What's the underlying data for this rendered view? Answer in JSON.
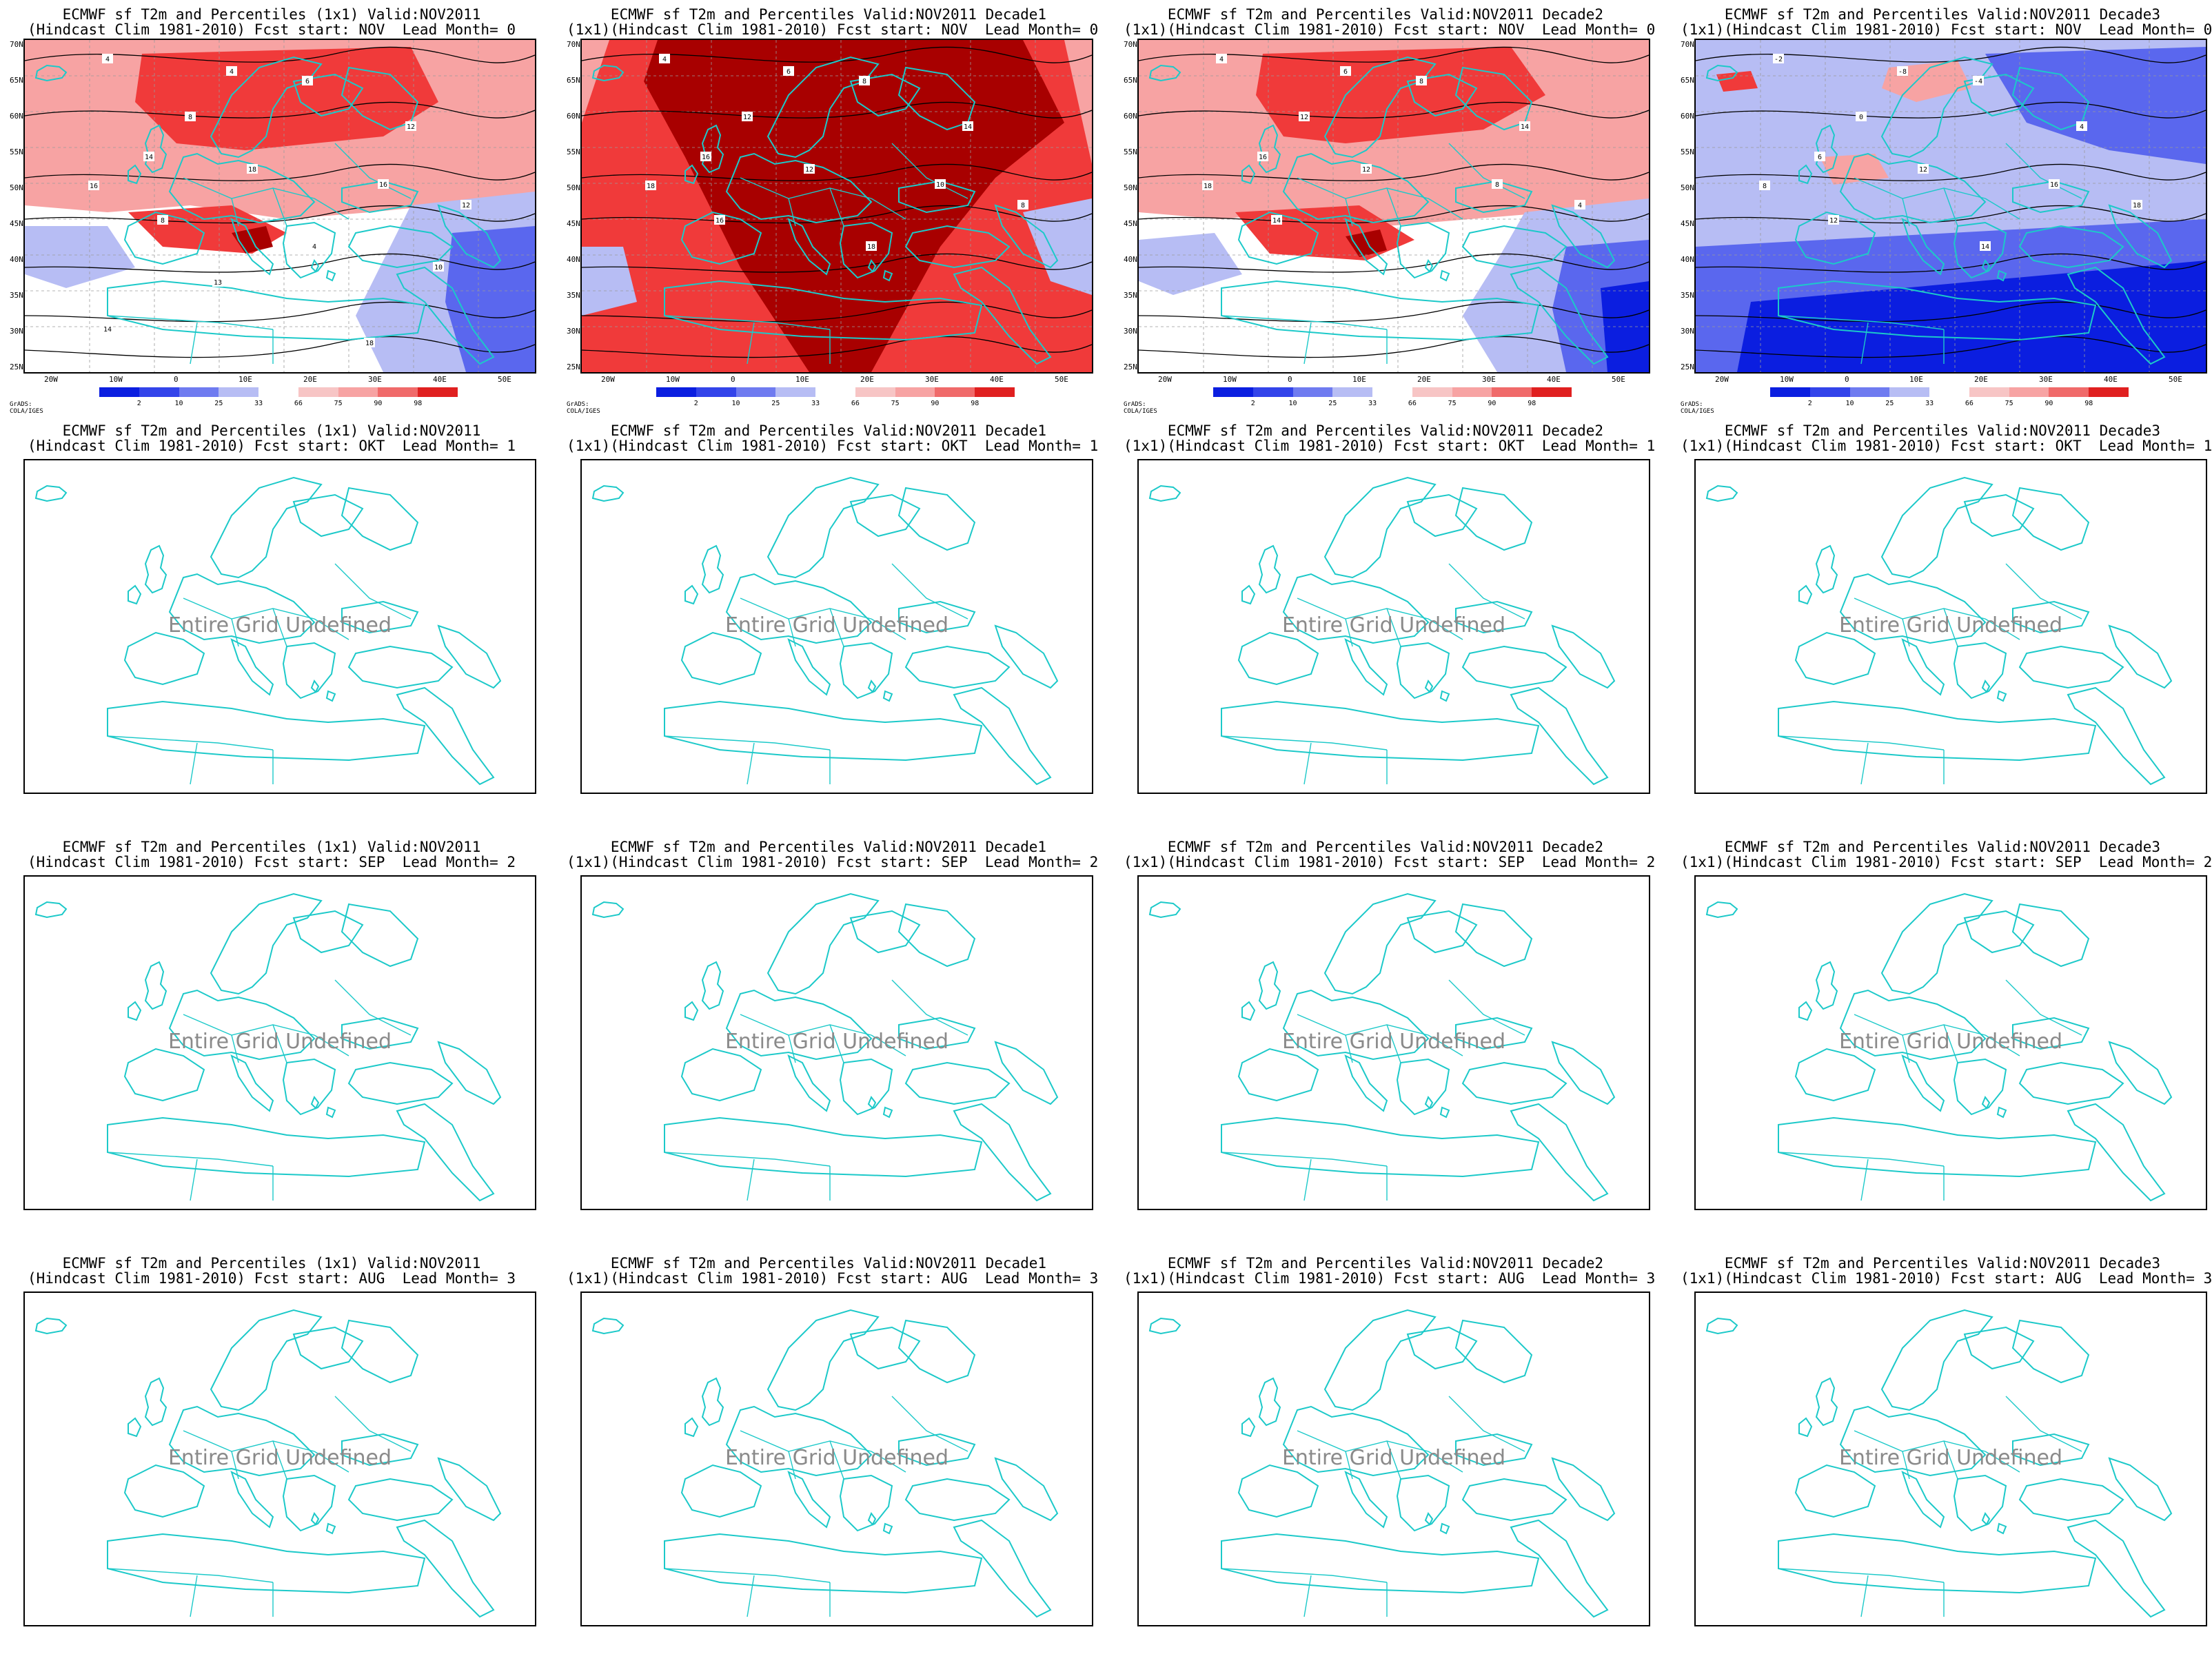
{
  "colors": {
    "coast": "#1cc9c9",
    "strong_red": "#a80000",
    "red": "#f03a3a",
    "light_red": "#f7a3a3",
    "light_blue": "#b7bdf4",
    "blue": "#5a67ee",
    "dark_blue": "#0b1ee0"
  },
  "undefined_text": "Entire Grid Undefined",
  "credit": "GrADS: COLA/IGES",
  "lat_labels": [
    "70N",
    "65N",
    "60N",
    "55N",
    "50N",
    "45N",
    "40N",
    "35N",
    "30N",
    "25N"
  ],
  "lon_labels": [
    "20W",
    "10W",
    "0",
    "10E",
    "20E",
    "30E",
    "40E",
    "50E"
  ],
  "colorbar_labels": [
    "2",
    "10",
    "25",
    "33",
    "66",
    "75",
    "90",
    "98"
  ],
  "rows": [
    {
      "panels": [
        {
          "line1": "ECMWF sf T2m and Percentiles (1x1) Valid:NOV2011",
          "line2": "(Hindcast Clim 1981-2010) Fcst start: NOV  Lead Month= 0",
          "state": "warm",
          "contours": [
            "4",
            "4",
            "6",
            "8",
            "12",
            "14",
            "16",
            "18",
            "16",
            "12",
            "8",
            "4",
            "10",
            "13",
            "14",
            "18"
          ]
        },
        {
          "line1": "ECMWF sf T2m and Percentiles Valid:NOV2011 Decade1",
          "line2": "(1x1)(Hindcast Clim 1981-2010) Fcst start: NOV  Lead Month= 0",
          "state": "hot",
          "contours": [
            "4",
            "6",
            "8",
            "12",
            "14",
            "16",
            "18",
            "12",
            "10",
            "8",
            "16",
            "18"
          ]
        },
        {
          "line1": "ECMWF sf T2m and Percentiles Valid:NOV2011 Decade2",
          "line2": "(1x1)(Hindcast Clim 1981-2010) Fcst start: NOV  Lead Month= 0",
          "state": "warm2",
          "contours": [
            "4",
            "6",
            "8",
            "12",
            "14",
            "16",
            "18",
            "12",
            "8",
            "4",
            "14"
          ]
        },
        {
          "line1": "ECMWF sf T2m and Percentiles Valid:NOV2011 Decade3",
          "line2": "(1x1)(Hindcast Clim 1981-2010) Fcst start: NOV  Lead Month= 0",
          "state": "cold",
          "contours": [
            "-2",
            "-8",
            "-4",
            "0",
            "4",
            "6",
            "8",
            "12",
            "16",
            "18",
            "12",
            "14"
          ]
        }
      ]
    },
    {
      "panels": [
        {
          "line1": "ECMWF sf T2m and Percentiles (1x1) Valid:NOV2011",
          "line2": "(Hindcast Clim 1981-2010) Fcst start: OKT  Lead Month= 1",
          "state": "undefined"
        },
        {
          "line1": "ECMWF sf T2m and Percentiles Valid:NOV2011 Decade1",
          "line2": "(1x1)(Hindcast Clim 1981-2010) Fcst start: OKT  Lead Month= 1",
          "state": "undefined"
        },
        {
          "line1": "ECMWF sf T2m and Percentiles Valid:NOV2011 Decade2",
          "line2": "(1x1)(Hindcast Clim 1981-2010) Fcst start: OKT  Lead Month= 1",
          "state": "undefined"
        },
        {
          "line1": "ECMWF sf T2m and Percentiles Valid:NOV2011 Decade3",
          "line2": "(1x1)(Hindcast Clim 1981-2010) Fcst start: OKT  Lead Month= 1",
          "state": "undefined"
        }
      ]
    },
    {
      "panels": [
        {
          "line1": "ECMWF sf T2m and Percentiles (1x1) Valid:NOV2011",
          "line2": "(Hindcast Clim 1981-2010) Fcst start: SEP  Lead Month= 2",
          "state": "undefined"
        },
        {
          "line1": "ECMWF sf T2m and Percentiles Valid:NOV2011 Decade1",
          "line2": "(1x1)(Hindcast Clim 1981-2010) Fcst start: SEP  Lead Month= 2",
          "state": "undefined"
        },
        {
          "line1": "ECMWF sf T2m and Percentiles Valid:NOV2011 Decade2",
          "line2": "(1x1)(Hindcast Clim 1981-2010) Fcst start: SEP  Lead Month= 2",
          "state": "undefined"
        },
        {
          "line1": "ECMWF sf T2m and Percentiles Valid:NOV2011 Decade3",
          "line2": "(1x1)(Hindcast Clim 1981-2010) Fcst start: SEP  Lead Month= 2",
          "state": "undefined"
        }
      ]
    },
    {
      "panels": [
        {
          "line1": "ECMWF sf T2m and Percentiles (1x1) Valid:NOV2011",
          "line2": "(Hindcast Clim 1981-2010) Fcst start: AUG  Lead Month= 3",
          "state": "undefined"
        },
        {
          "line1": "ECMWF sf T2m and Percentiles Valid:NOV2011 Decade1",
          "line2": "(1x1)(Hindcast Clim 1981-2010) Fcst start: AUG  Lead Month= 3",
          "state": "undefined"
        },
        {
          "line1": "ECMWF sf T2m and Percentiles Valid:NOV2011 Decade2",
          "line2": "(1x1)(Hindcast Clim 1981-2010) Fcst start: AUG  Lead Month= 3",
          "state": "undefined"
        },
        {
          "line1": "ECMWF sf T2m and Percentiles Valid:NOV2011 Decade3",
          "line2": "(1x1)(Hindcast Clim 1981-2010) Fcst start: AUG  Lead Month= 3",
          "state": "undefined"
        }
      ]
    }
  ]
}
